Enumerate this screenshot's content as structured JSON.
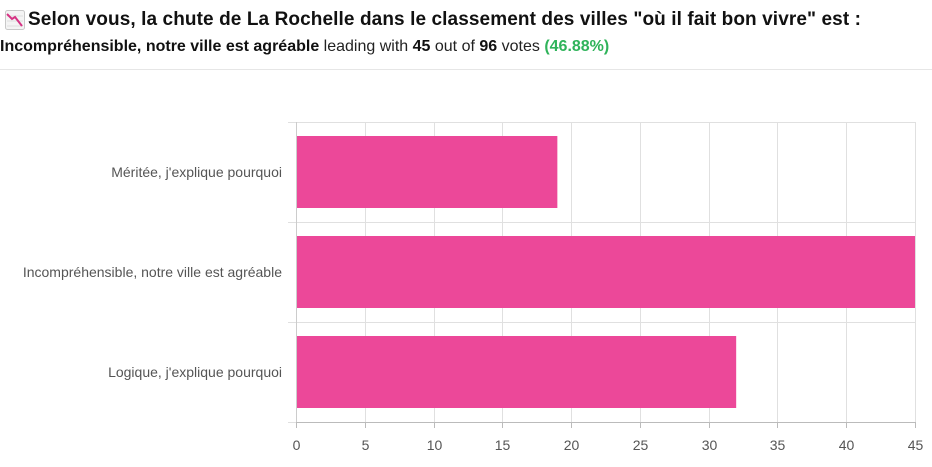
{
  "header": {
    "title": "Selon vous, la chute de La Rochelle dans le classement des villes \"où il fait bon vivre\" est :",
    "icon": "chart-decreasing-icon",
    "leader": "Incompréhensible, notre ville est agréable",
    "leading_with": "leading with",
    "leader_votes": "45",
    "out_of": "out of",
    "total_votes": "96",
    "votes_word": "votes",
    "leader_pct": "(46.88%)"
  },
  "colors": {
    "bar": "#ec4899",
    "percent": "#2fb35a",
    "grid": "#e0e0e0"
  },
  "chart_data": {
    "type": "bar",
    "orientation": "horizontal",
    "categories": [
      "Méritée, j'explique pourquoi",
      "Incompréhensible, notre ville est agréable",
      "Logique, j'explique pourquoi"
    ],
    "values": [
      19,
      45,
      32
    ],
    "xlim": [
      0,
      45
    ],
    "xticks": [
      0,
      5,
      10,
      15,
      20,
      25,
      30,
      35,
      40,
      45
    ],
    "grid": true,
    "title": "",
    "xlabel": "",
    "ylabel": ""
  }
}
